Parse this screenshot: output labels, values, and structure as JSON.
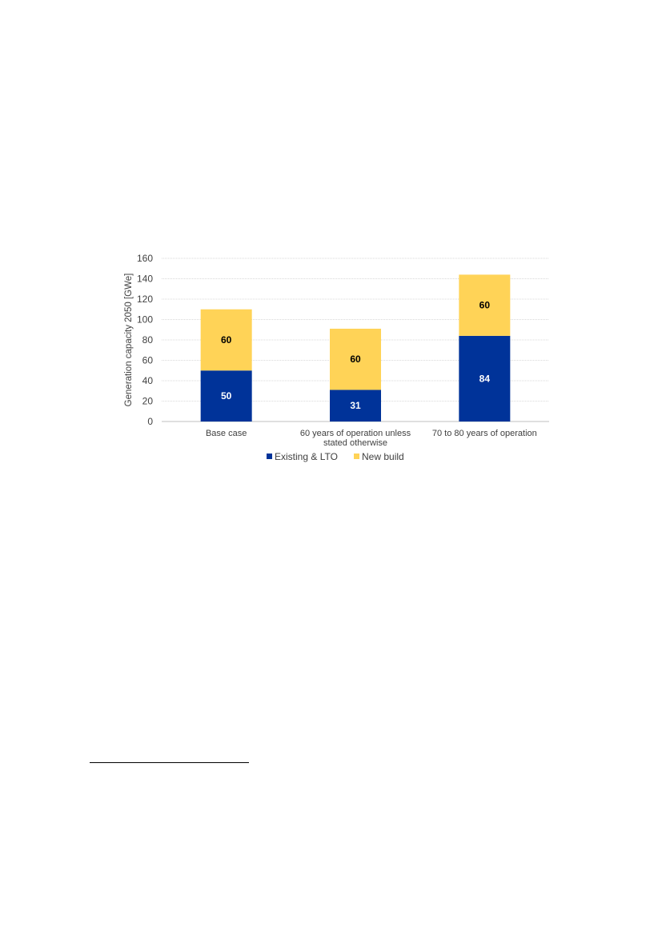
{
  "chart_data": {
    "type": "bar",
    "stacked": true,
    "categories": [
      [
        "Base case"
      ],
      [
        "60 years of operation unless",
        "stated otherwise"
      ],
      [
        "70 to 80 years of operation"
      ]
    ],
    "series": [
      {
        "name": "Existing & LTO",
        "values": [
          50,
          31,
          84
        ],
        "color": "#003399",
        "label_color": "#ffffff"
      },
      {
        "name": "New build",
        "values": [
          60,
          60,
          60
        ],
        "color": "#ffd357",
        "label_color": "#000000"
      }
    ],
    "ylabel": "Generation capacity 2050 [GWe]",
    "ylim": [
      0,
      160
    ],
    "yticks": [
      0,
      20,
      40,
      60,
      80,
      100,
      120,
      140,
      160
    ],
    "grid": true,
    "legend_position": "bottom"
  }
}
